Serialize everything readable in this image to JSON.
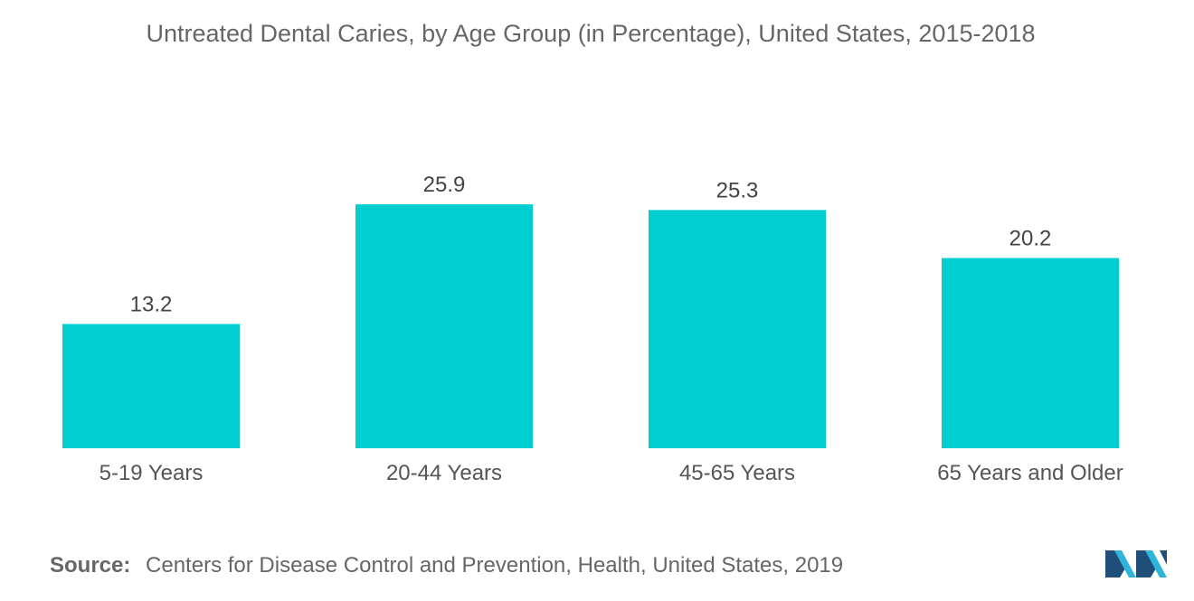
{
  "chart_data": {
    "type": "bar",
    "title": "Untreated Dental Caries, by Age Group (in Percentage), United States, 2015-2018",
    "categories": [
      "5-19 Years",
      "20-44 Years",
      "45-65 Years",
      "65 Years and Older"
    ],
    "values": [
      13.2,
      25.9,
      25.3,
      20.2
    ],
    "data_labels": [
      "13.2",
      "25.9",
      "25.3",
      "20.2"
    ],
    "xlabel": "",
    "ylabel": "",
    "ylim": [
      0,
      35
    ],
    "grid": false,
    "legend": "none",
    "bar_color": "#00CED1"
  },
  "source": {
    "label": "Source:",
    "text": "Centers for Disease Control and Prevention, Health, United States, 2019"
  },
  "logo": {
    "icon": "mordor-intelligence-logo-icon",
    "colors": [
      "#1F4E79",
      "#2FB5D9"
    ]
  }
}
